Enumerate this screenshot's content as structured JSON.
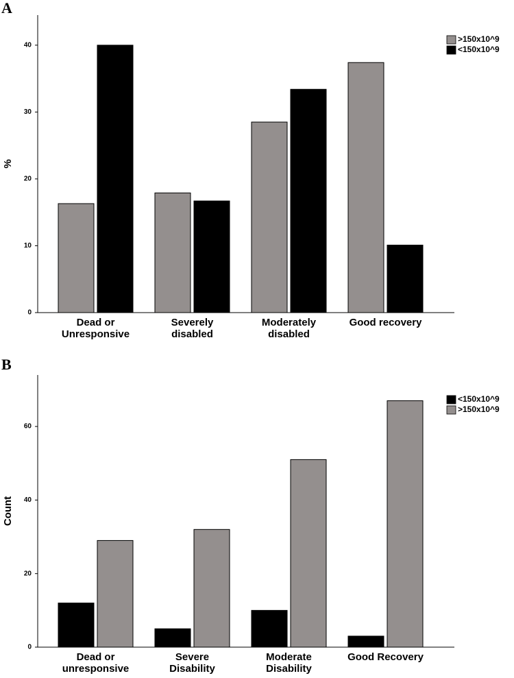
{
  "chart_data": [
    {
      "type": "bar",
      "label": "A",
      "ylabel": "%",
      "categories": [
        [
          "Dead or",
          "Unresponsive"
        ],
        [
          "Severely",
          "disabled"
        ],
        [
          "Moderately",
          "disabled"
        ],
        [
          "Good recovery"
        ]
      ],
      "series": [
        {
          "name": ">150x10^9",
          "color": "#948f8e",
          "values": [
            16.3,
            17.9,
            28.5,
            37.4
          ]
        },
        {
          "name": "<150x10^9",
          "color": "#000000",
          "values": [
            40.0,
            16.7,
            33.4,
            10.1
          ]
        }
      ],
      "ylim": [
        0,
        44.5
      ],
      "yticks": [
        0,
        10,
        20,
        30,
        40
      ],
      "legend": "top-right"
    },
    {
      "type": "bar",
      "label": "B",
      "ylabel": "Count",
      "categories": [
        [
          "Dead or",
          "unresponsive"
        ],
        [
          "Severe",
          "Disability"
        ],
        [
          "Moderate",
          "Disability"
        ],
        [
          "Good Recovery"
        ]
      ],
      "series": [
        {
          "name": "<150x10^9",
          "color": "#000000",
          "values": [
            12,
            5,
            10,
            3
          ]
        },
        {
          "name": ">150x10^9",
          "color": "#948f8e",
          "values": [
            29,
            32,
            51,
            67
          ]
        }
      ],
      "ylim": [
        0,
        74
      ],
      "yticks": [
        0,
        20,
        40,
        60
      ],
      "legend": "top-right"
    }
  ]
}
